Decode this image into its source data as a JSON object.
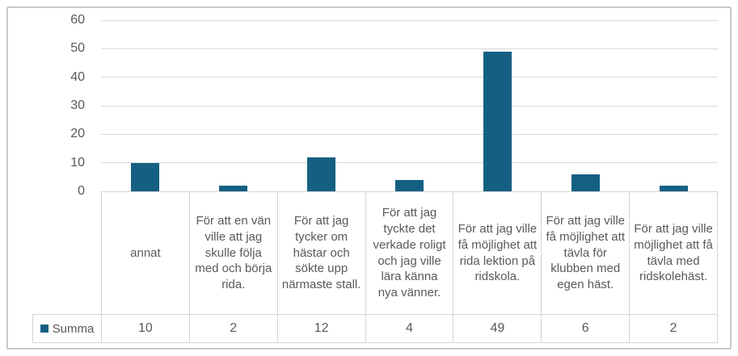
{
  "chart_data": {
    "type": "bar",
    "title": "",
    "xlabel": "",
    "ylabel": "",
    "categories": [
      "annat",
      "För att en vän ville att jag skulle följa med och börja rida.",
      "För att jag tycker om hästar och sökte upp närmaste stall.",
      "För att jag tyckte det verkade roligt och jag ville lära känna nya vänner.",
      "För att jag ville få möjlighet att rida lektion på ridskola.",
      "För att jag ville få möjlighet att tävla för klubben med egen häst.",
      "För att jag ville möjlighet att få tävla med ridskolehäst."
    ],
    "series": [
      {
        "name": "Summa",
        "values": [
          10,
          2,
          12,
          4,
          49,
          6,
          2
        ]
      }
    ],
    "ylim": [
      0,
      60
    ],
    "yticks": [
      0,
      10,
      20,
      30,
      40,
      50,
      60
    ],
    "grid": true,
    "legend_position": "bottom-left-of-data-table",
    "data_table": true
  },
  "colors": {
    "bar": "#156082",
    "axis_text": "#595959",
    "gridline": "#D9D9D9",
    "table_border": "#D4D4D4",
    "frame_border": "#C9C9C9",
    "background": "#FFFFFF"
  }
}
